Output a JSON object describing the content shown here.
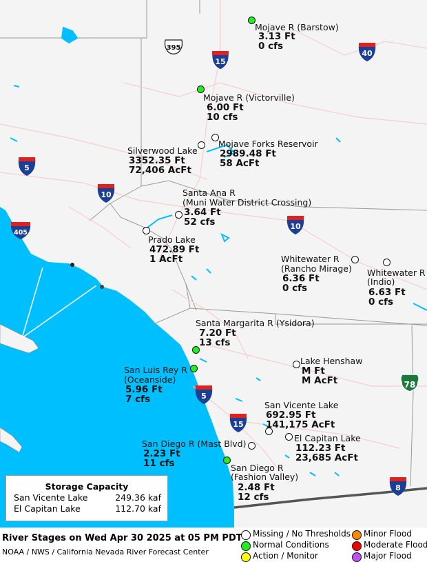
{
  "colors": {
    "ocean": "#00bfff",
    "land": "#f4f4f4",
    "missing": "#ffffff",
    "normal": "#22ee22",
    "action": "#ffff00",
    "minor": "#ff8800",
    "moderate": "#ee0000",
    "major": "#bb55ee"
  },
  "stations": [
    {
      "id": "mojave-barstow",
      "name": "Mojave R (Barstow)",
      "values": [
        "3.13 Ft",
        "0 cfs"
      ],
      "status": "normal"
    },
    {
      "id": "mojave-victorville",
      "name": "Mojave R (Victorville)",
      "values": [
        "6.00 Ft",
        "10 cfs"
      ],
      "status": "normal"
    },
    {
      "id": "mojave-forks",
      "name": "Mojave Forks Reservoir",
      "values": [
        "2989.48 Ft",
        "58 AcFt"
      ],
      "status": "missing"
    },
    {
      "id": "silverwood",
      "name": "Silverwood Lake",
      "values": [
        "3352.35 Ft",
        "72,406 AcFt"
      ],
      "status": "missing"
    },
    {
      "id": "santa-ana",
      "name": "Santa Ana R",
      "name2": "(Muni Water District Crossing)",
      "values": [
        "3.64 Ft",
        "52 cfs"
      ],
      "status": "missing"
    },
    {
      "id": "prado",
      "name": "Prado Lake",
      "values": [
        "472.89 Ft",
        "1 AcFt"
      ],
      "status": "missing"
    },
    {
      "id": "whitewater-rm",
      "name": "Whitewater R",
      "name2": "(Rancho Mirage)",
      "values": [
        "6.36 Ft",
        "0 cfs"
      ],
      "status": "missing"
    },
    {
      "id": "whitewater-indio",
      "name": "Whitewater R",
      "name2": "(Indio)",
      "values": [
        "6.63 Ft",
        "0 cfs"
      ],
      "status": "missing"
    },
    {
      "id": "santa-margarita",
      "name": "Santa Margarita R (Ysidora)",
      "values": [
        "7.20 Ft",
        "13 cfs"
      ],
      "status": "normal"
    },
    {
      "id": "lake-henshaw",
      "name": "Lake Henshaw",
      "values": [
        "M Ft",
        "M AcFt"
      ],
      "status": "missing"
    },
    {
      "id": "san-luis-rey",
      "name": "San Luis Rey R",
      "name2": "(Oceanside)",
      "values": [
        "5.96 Ft",
        "7 cfs"
      ],
      "status": "normal"
    },
    {
      "id": "san-vicente",
      "name": "San Vicente Lake",
      "values": [
        "692.95 Ft",
        "141,175 AcFt"
      ],
      "status": "missing"
    },
    {
      "id": "el-capitan",
      "name": "El Capitan Lake",
      "values": [
        "112.23 Ft",
        "23,685 AcFt"
      ],
      "status": "missing"
    },
    {
      "id": "san-diego-mast",
      "name": "San Diego R (Mast Blvd)",
      "values": [
        "2.23 Ft",
        "11 cfs"
      ],
      "status": "missing"
    },
    {
      "id": "san-diego-fv",
      "name": "San Diego R",
      "name2": "(Fashion Valley)",
      "values": [
        "2.48 Ft",
        "12 cfs"
      ],
      "status": "normal"
    }
  ],
  "shields": [
    {
      "id": "us-395",
      "kind": "us",
      "number": "395"
    },
    {
      "id": "i15-north",
      "kind": "interstate",
      "number": "15"
    },
    {
      "id": "i40",
      "kind": "interstate",
      "number": "40"
    },
    {
      "id": "i5-north",
      "kind": "interstate",
      "number": "5"
    },
    {
      "id": "i10-west",
      "kind": "interstate",
      "number": "10"
    },
    {
      "id": "i405",
      "kind": "interstate",
      "number": "405"
    },
    {
      "id": "i10-east",
      "kind": "interstate",
      "number": "10"
    },
    {
      "id": "i5-south",
      "kind": "interstate",
      "number": "5"
    },
    {
      "id": "i15-south",
      "kind": "interstate",
      "number": "15"
    },
    {
      "id": "ca-78",
      "kind": "state",
      "number": "78"
    },
    {
      "id": "i8",
      "kind": "interstate",
      "number": "8"
    }
  ],
  "storage": {
    "title": "Storage Capacity",
    "rows": [
      {
        "name": "San Vicente Lake",
        "value": "249.36 kaf"
      },
      {
        "name": "El Capitan Lake",
        "value": "112.70 kaf"
      }
    ]
  },
  "footer": {
    "title": "River Stages on Wed Apr 30 2025 at 05 PM PDT",
    "subtitle": "NOAA / NWS / California Nevada River Forecast Center"
  },
  "legend": [
    {
      "label": "Missing / No Thresholds",
      "color": "#ffffff"
    },
    {
      "label": "Normal Conditions",
      "color": "#22ee22"
    },
    {
      "label": "Action / Monitor",
      "color": "#ffff00"
    },
    {
      "label": "Minor Flood",
      "color": "#ff8800"
    },
    {
      "label": "Moderate Flood",
      "color": "#ee0000"
    },
    {
      "label": "Major Flood",
      "color": "#bb55ee"
    }
  ]
}
